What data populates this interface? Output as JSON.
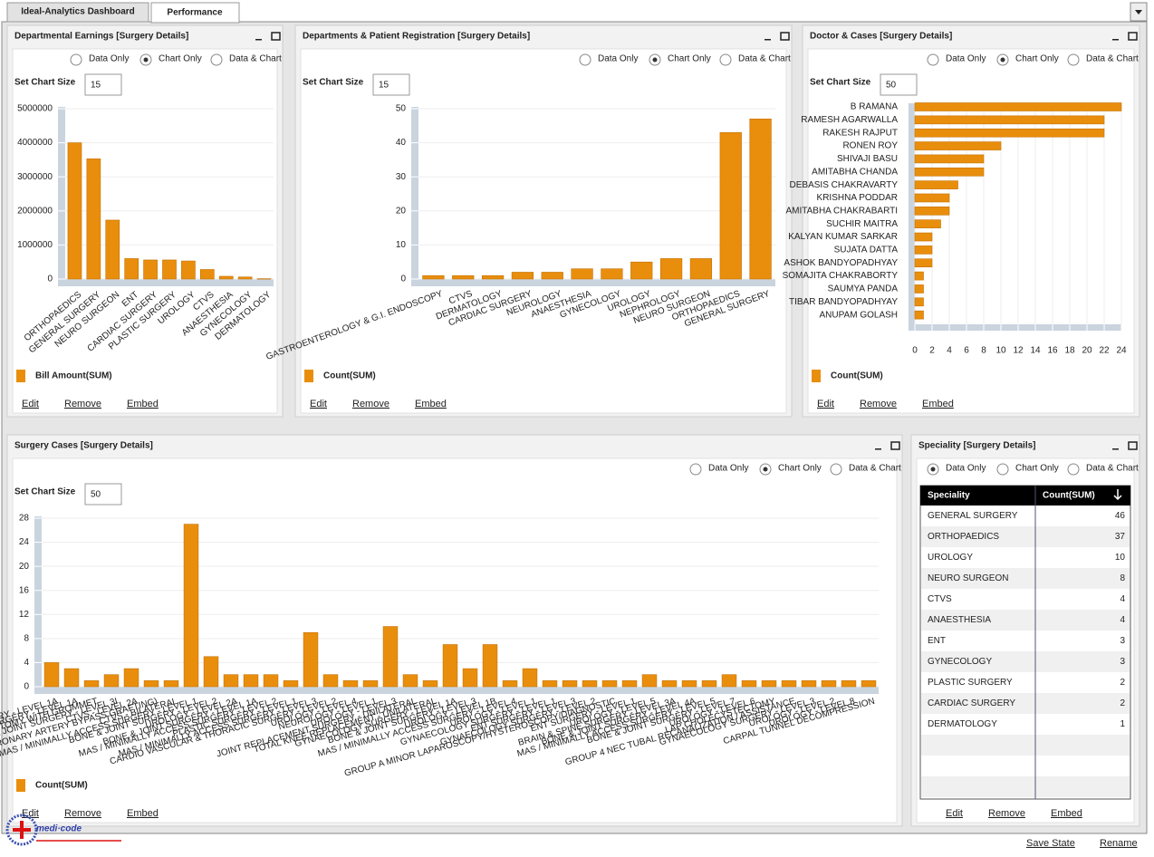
{
  "tabs": [
    "Ideal-Analytics Dashboard",
    "Performance"
  ],
  "radio_options": [
    "Data Only",
    "Chart Only",
    "Data & Chart"
  ],
  "size_label": "Set Chart Size",
  "actions": [
    "Edit",
    "Remove",
    "Embed"
  ],
  "footer": [
    "Save State",
    "Rename"
  ],
  "logo": "medi·code",
  "chart_data": [
    {
      "type": "bar",
      "title": "Departmental Earnings [Surgery Details]",
      "selected": 1,
      "chart_size": 15,
      "categories": [
        "ORTHOPAEDICS",
        "GENERAL SURGERY",
        "NEURO SURGEON",
        "ENT",
        "CARDIAC SURGERY",
        "PLASTIC SURGERY",
        "UROLOGY",
        "CTVS",
        "ANAESTHESIA",
        "GYNECOLOGY",
        "DERMATOLOGY"
      ],
      "series": [
        {
          "name": "Bill Amount(SUM)",
          "color": "#e98e0c",
          "values": [
            4000000,
            3530000,
            1730000,
            600000,
            560000,
            560000,
            530000,
            280000,
            80000,
            60000,
            10000
          ]
        }
      ],
      "ylim": [
        0,
        5000000
      ],
      "yticks": [
        0,
        1000000,
        2000000,
        3000000,
        4000000,
        5000000
      ],
      "grid": true
    },
    {
      "type": "bar",
      "title": "Departments & Patient Registration [Surgery Details]",
      "selected": 1,
      "chart_size": 15,
      "categories": [
        "GASTROENTEROLOGY & G.I. ENDOSCOPY",
        "CTVS",
        "DERMATOLOGY",
        "CARDIAC SURGERY",
        "NEUROLOGY",
        "ANAESTHESIA",
        "GYNECOLOGY",
        "UROLOGY",
        "NEPHROLOGY",
        "NEURO SURGEON",
        "ORTHOPAEDICS",
        "GENERAL SURGERY"
      ],
      "series": [
        {
          "name": "Count(SUM)",
          "color": "#e98e0c",
          "values": [
            1,
            1,
            1,
            2,
            2,
            3,
            3,
            5,
            6,
            6,
            43,
            47
          ]
        }
      ],
      "ylim": [
        0,
        50
      ],
      "yticks": [
        0,
        10,
        20,
        30,
        40,
        50
      ],
      "grid": true
    },
    {
      "type": "hbar",
      "title": "Doctor & Cases [Surgery Details]",
      "selected": 1,
      "chart_size": 50,
      "categories": [
        "B RAMANA",
        "RAMESH AGARWALLA",
        "RAKESH RAJPUT",
        "RONEN ROY",
        "SHIVAJI BASU",
        "AMITABHA CHANDA",
        "DEBASIS CHAKRAVARTY",
        "KRISHNA PODDAR",
        "AMITABHA CHAKRABARTI",
        "SUCHIR MAITRA",
        "KALYAN KUMAR SARKAR",
        "SUJATA DATTA",
        "ASHOK BANDYOPADHYAY",
        "SOMAJITA CHAKRABORTY",
        "SAUMYA PANDA",
        "TIBAR BANDYOPADHYAY",
        "ANUPAM GOLASH"
      ],
      "series": [
        {
          "name": "Count(SUM)",
          "color": "#e98e0c",
          "values": [
            24,
            22,
            22,
            10,
            8,
            8,
            5,
            4,
            4,
            3,
            2,
            2,
            2,
            1,
            1,
            1,
            1
          ]
        }
      ],
      "xlim": [
        0,
        24
      ],
      "xticks": [
        0,
        2,
        4,
        6,
        8,
        10,
        12,
        14,
        16,
        18,
        20,
        22,
        24
      ],
      "grid": true
    },
    {
      "type": "bar",
      "title": "Surgery Cases [Surgery Details]",
      "selected": 1,
      "chart_size": 50,
      "categories": [
        "GENERAL SURGERY - LEVEL 1A",
        "ENT SURGERY - LEVEL 1A",
        "ADENOIDECTOMY WITH GROMMET",
        "BONE & JOINT SURGERY - LEVEL 3I",
        "CTVS - LEVEL 2A",
        "CABG (CORONARY ARTERY BYPASS GRAFTING)",
        "CTVS - BILATERAL",
        "MAS / MINIMALLY ACCESS SURGERY - LEVEL 1",
        "BONE & JOINT SURGERY - LEVEL 2",
        "UROLOGY - LEVEL 2A",
        "BONE & JOINT SURGERY - LEVEL 1A",
        "MAS / MINIMALLY ACCESS SURGERY - LEVEL 2",
        "PLASTIC SURGERY - LEVEL 1",
        "MAS / MINIMALLY ACCESS SURGERY - LEVEL 3",
        "CARDIO VASCULAR & THORACIC SURGERY - LEVEL 2",
        "UROLOGY - LEVEL 4",
        "NEUROLOGY - LEVEL 1",
        "UROLOGY - LEVEL 3",
        "JOINT REPLACEMENT SURGERY - UNILATERAL",
        "TOTAL KNEE REPLACEMENT - UNILATERAL",
        "GYNAECOLOGY SURGERY - LEVEL 1A",
        "BONE & JOINT SURGERY - LEVEL 3",
        "UROLOGY - LEVEL 1B",
        "MAS / MINIMALLY ACCESS SURGERY - LEVEL 4",
        "UROLOGY - LEVEL 1",
        "GYNAECOLOGY SURGERY - LEVEL 1",
        "ENT SURGERY - LEVEL 3",
        "GYNAECOLOGY SURGERY - LEVEL 2",
        "GROUP A MINOR LAPAROSCOPY/HYSTEROSCOPY/DIAGNOSTIC",
        "ENT SURGERY - LEVEL 1",
        "UROLOGY - LEVEL 5",
        "BRAIN & SPINE SURGERY - LEVEL 3A",
        "BONE & JOINT SURGERY - LEVEL 4A",
        "MAS / MINIMALLY ACCESS SURGERY - LEVEL 5",
        "BONE & JOINT SURGERY - LEVEL 7",
        "UROLOGY - LEVEL 6",
        "LAP CHOLECYSTECTOMY",
        "GROUP 4 NEC TUBAL RECANALIZATION / ASSISTANCE",
        "GYNAECOLOGY SURGERY - LEVEL 3",
        "UROLOGY - LEVEL 2",
        "UROLOGY - LEVEL 8",
        "CARPAL TUNNEL DECOMPRESSION"
      ],
      "series": [
        {
          "name": "Count(SUM)",
          "color": "#e98e0c",
          "values": [
            4,
            3,
            1,
            2,
            3,
            1,
            1,
            27,
            5,
            2,
            2,
            2,
            1,
            9,
            2,
            1,
            1,
            10,
            2,
            1,
            7,
            3,
            7,
            1,
            3,
            1,
            1,
            1,
            1,
            1,
            2,
            1,
            1,
            1,
            2,
            1,
            1,
            1,
            1,
            1,
            1,
            1
          ]
        }
      ],
      "ylim": [
        0,
        28
      ],
      "yticks": [
        0,
        4,
        8,
        12,
        16,
        20,
        24,
        28
      ],
      "grid": true
    }
  ],
  "table_panel": {
    "title": "Speciality [Surgery Details]",
    "selected": 0,
    "columns": [
      "Speciality",
      "Count(SUM)"
    ],
    "rows": [
      [
        "GENERAL SURGERY",
        46
      ],
      [
        "ORTHOPAEDICS",
        37
      ],
      [
        "UROLOGY",
        10
      ],
      [
        "NEURO SURGEON",
        8
      ],
      [
        "CTVS",
        4
      ],
      [
        "ANAESTHESIA",
        4
      ],
      [
        "ENT",
        3
      ],
      [
        "GYNECOLOGY",
        3
      ],
      [
        "PLASTIC SURGERY",
        2
      ],
      [
        "CARDIAC SURGERY",
        2
      ],
      [
        "DERMATOLOGY",
        1
      ]
    ]
  }
}
